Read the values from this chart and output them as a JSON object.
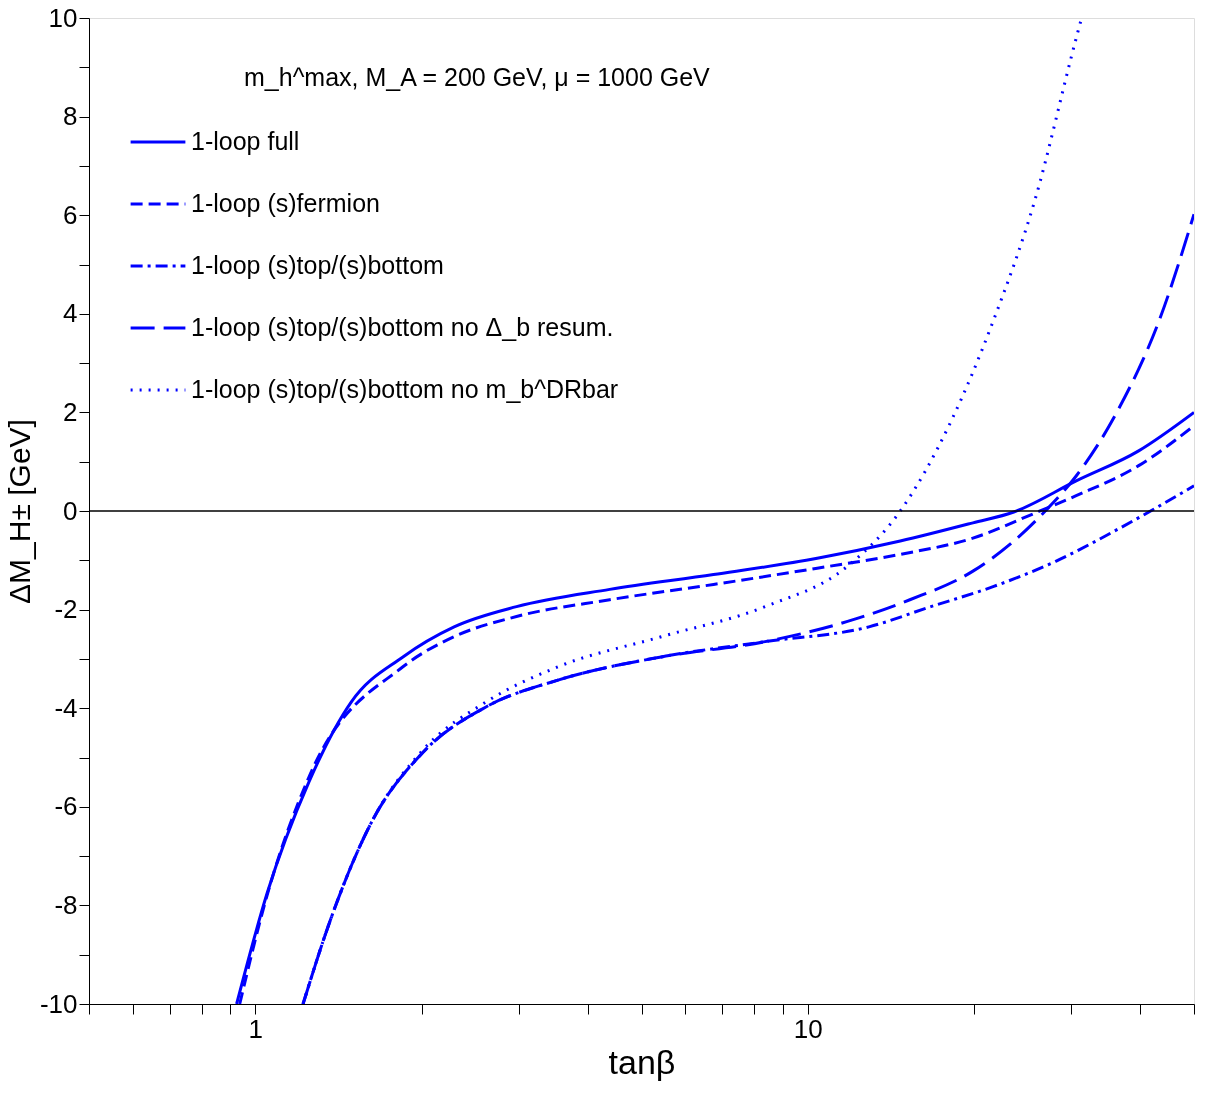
{
  "chart_data": {
    "type": "line",
    "xlabel": "tanβ",
    "ylabel": "ΔM_H± [GeV]",
    "annotations": [
      "m_h^max, M_A = 200 GeV, μ = 1000 GeV"
    ],
    "log": "x",
    "grid": false,
    "legend": "top left",
    "xlim": [
      0.5,
      50
    ],
    "ylim": [
      -10,
      10
    ],
    "xticks": [
      {
        "value": 0.5,
        "label": null
      },
      {
        "value": 0.6,
        "label": null
      },
      {
        "value": 0.7,
        "label": null
      },
      {
        "value": 0.8,
        "label": null
      },
      {
        "value": 0.9,
        "label": null
      },
      1,
      {
        "value": 2,
        "label": null
      },
      {
        "value": 3,
        "label": null
      },
      {
        "value": 4,
        "label": null
      },
      {
        "value": 5,
        "label": null
      },
      {
        "value": 6,
        "label": null
      },
      {
        "value": 7,
        "label": null
      },
      {
        "value": 8,
        "label": null
      },
      {
        "value": 9,
        "label": null
      },
      10,
      {
        "value": 20,
        "label": null
      },
      {
        "value": 30,
        "label": null
      },
      {
        "value": 40,
        "label": null
      },
      {
        "value": 50,
        "label": null
      }
    ],
    "yticks": [
      -10,
      {
        "value": -9,
        "label": null
      },
      -8,
      {
        "value": -7,
        "label": null
      },
      -6,
      {
        "value": -5,
        "label": null
      },
      -4,
      {
        "value": -3,
        "label": null
      },
      -2,
      {
        "value": -1,
        "label": null
      },
      0,
      {
        "value": 1,
        "label": null
      },
      2,
      {
        "value": 3,
        "label": null
      },
      4,
      {
        "value": 5,
        "label": null
      },
      6,
      {
        "value": 7,
        "label": null
      },
      8,
      {
        "value": 9,
        "label": null
      },
      10
    ],
    "ref_lines": [
      {
        "axis": "y",
        "value": 0,
        "label": null,
        "color": "#000000"
      }
    ],
    "series": [
      {
        "name": "1-loop full",
        "color": "#0000ff",
        "line_style": "solid",
        "x": [
          0.925,
          1.05,
          1.25,
          1.49,
          1.85,
          2.29,
          2.97,
          4.38,
          6.75,
          10.4,
          14.7,
          19.9,
          23.6,
          30.6,
          39.7,
          50
        ],
        "values": [
          -10,
          -7.76,
          -5.5,
          -3.88,
          -2.96,
          -2.35,
          -1.94,
          -1.59,
          -1.29,
          -0.96,
          -0.61,
          -0.24,
          -0.02,
          0.61,
          1.22,
          2.0
        ]
      },
      {
        "name": "1-loop (s)fermion",
        "color": "#0000ff",
        "line_style": "dashed",
        "x": [
          0.937,
          1.05,
          1.25,
          1.85,
          2.29,
          2.97,
          4.38,
          6.75,
          10.4,
          14.7,
          19.9,
          25.8,
          30.6,
          39.7,
          50
        ],
        "values": [
          -10,
          -7.8,
          -5.4,
          -3.16,
          -2.55,
          -2.14,
          -1.8,
          -1.49,
          -1.16,
          -0.88,
          -0.55,
          -0.04,
          0.31,
          0.92,
          1.73
        ]
      },
      {
        "name": "1-loop (s)top/(s)bottom",
        "color": "#0000ff",
        "line_style": "dashdot",
        "x": [
          1.22,
          1.36,
          1.62,
          2.01,
          2.61,
          3.53,
          5.43,
          8.37,
          12.9,
          16.7,
          21.7,
          28.1,
          36.4,
          50
        ],
        "values": [
          -10,
          -8.37,
          -6.33,
          -4.9,
          -3.98,
          -3.43,
          -2.96,
          -2.65,
          -2.35,
          -1.94,
          -1.53,
          -1.02,
          -0.37,
          0.51
        ]
      },
      {
        "name": "1-loop (s)top/(s)bottom no Δ_b resum.",
        "color": "#0000ff",
        "line_style": "longdash",
        "x": [
          1.22,
          1.36,
          1.62,
          2.01,
          2.61,
          3.53,
          5.43,
          8.37,
          11.8,
          15.3,
          19.9,
          23.6,
          26.9,
          30.6,
          36.4,
          43.3,
          50
        ],
        "values": [
          -10,
          -8.37,
          -6.33,
          -4.9,
          -3.98,
          -3.43,
          -2.96,
          -2.65,
          -2.24,
          -1.8,
          -1.22,
          -0.61,
          0,
          0.71,
          2.04,
          3.88,
          6.02
        ]
      },
      {
        "name": "1-loop (s)top/(s)bottom no m_b^DRbar",
        "color": "#0000ff",
        "line_style": "dotted",
        "x": [
          1.22,
          1.36,
          1.62,
          2.01,
          2.61,
          3.53,
          5.43,
          8.37,
          11.8,
          14.7,
          18.2,
          21.7,
          25.8,
          30.6,
          31.3
        ],
        "values": [
          -10,
          -8.37,
          -6.33,
          -4.85,
          -3.88,
          -3.16,
          -2.55,
          -1.94,
          -1.12,
          0,
          1.84,
          3.88,
          6.33,
          9.59,
          10
        ]
      }
    ]
  }
}
